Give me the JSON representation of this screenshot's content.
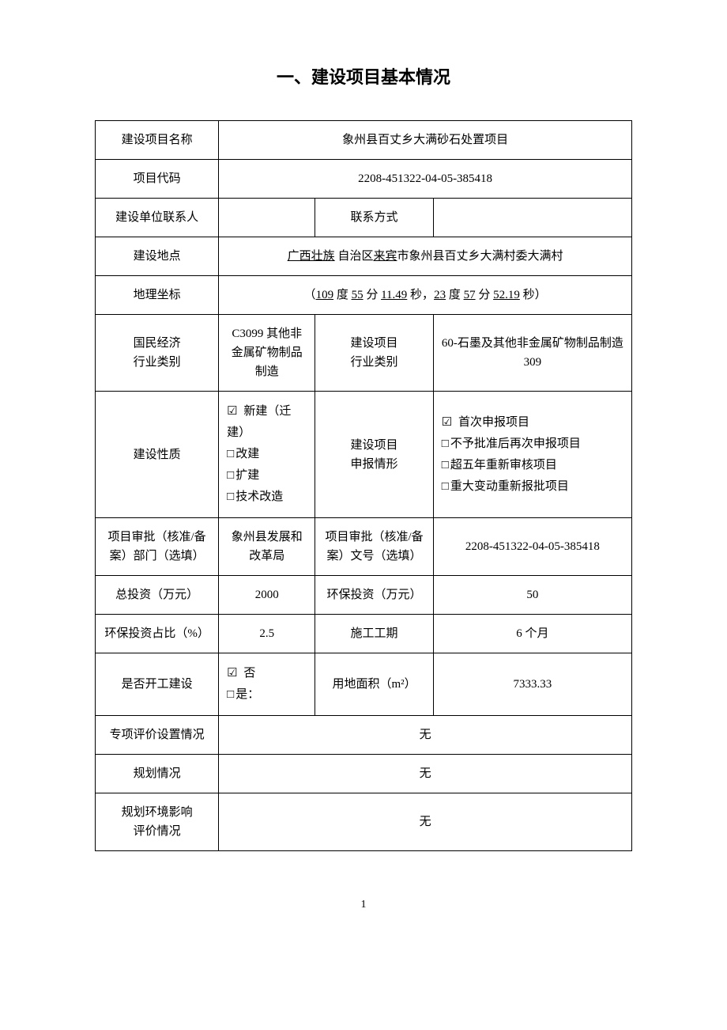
{
  "title": "一、建设项目基本情况",
  "rows": {
    "project_name_label": "建设项目名称",
    "project_name_value": "象州县百丈乡大满砂石处置项目",
    "project_code_label": "项目代码",
    "project_code_value": "2208-451322-04-05-385418",
    "contact_person_label": "建设单位联系人",
    "contact_person_value": "",
    "contact_method_label": "联系方式",
    "contact_method_value": "",
    "location_label": "建设地点",
    "location_prefix": "广西壮族",
    "location_region": " 自治区",
    "location_city": "来宾",
    "location_suffix": "市象州县百丈乡大满村委大满村",
    "coords_label": "地理坐标",
    "coords_open": "（",
    "coords_deg1": "109",
    "coords_unit1": " 度 ",
    "coords_min1": "55",
    "coords_unit2": " 分 ",
    "coords_sec1": "11.49",
    "coords_unit3": " 秒，",
    "coords_deg2": "23",
    "coords_unit4": " 度 ",
    "coords_min2": "57",
    "coords_unit5": " 分 ",
    "coords_sec2": "52.19",
    "coords_unit6": " 秒）",
    "econ_category_label": "国民经济\n行业类别",
    "econ_category_value": "C3099 其他非金属矿物制品制造",
    "project_industry_label": "建设项目\n行业类别",
    "project_industry_value": "60-石墨及其他非金属矿物制品制造 309",
    "nature_label": "建设性质",
    "nature_opt1": " 新建（迁建）",
    "nature_opt2": "改建",
    "nature_opt3": "扩建",
    "nature_opt4": "技术改造",
    "declare_label": "建设项目\n申报情形",
    "declare_opt1": " 首次申报项目",
    "declare_opt2": "不予批准后再次申报项目",
    "declare_opt3": "超五年重新审核项目",
    "declare_opt4": "重大变动重新报批项目",
    "approval_dept_label": "项目审批（核准/备案）部门（选填）",
    "approval_dept_value": "象州县发展和改革局",
    "approval_doc_label": "项目审批（核准/备案）文号（选填）",
    "approval_doc_value": "2208-451322-04-05-385418",
    "total_invest_label": "总投资（万元）",
    "total_invest_value": "2000",
    "env_invest_label": "环保投资（万元）",
    "env_invest_value": "50",
    "env_ratio_label": "环保投资占比（%）",
    "env_ratio_value": "2.5",
    "period_label": "施工工期",
    "period_value": "6 个月",
    "started_label": "是否开工建设",
    "started_no": " 否",
    "started_yes": "是：",
    "land_area_label": "用地面积（m²）",
    "land_area_value": "7333.33",
    "special_eval_label": "专项评价设置情况",
    "special_eval_value": "无",
    "planning_label": "规划情况",
    "planning_value": "无",
    "planning_env_label": "规划环境影响\n评价情况",
    "planning_env_value": "无"
  },
  "page_number": "1"
}
